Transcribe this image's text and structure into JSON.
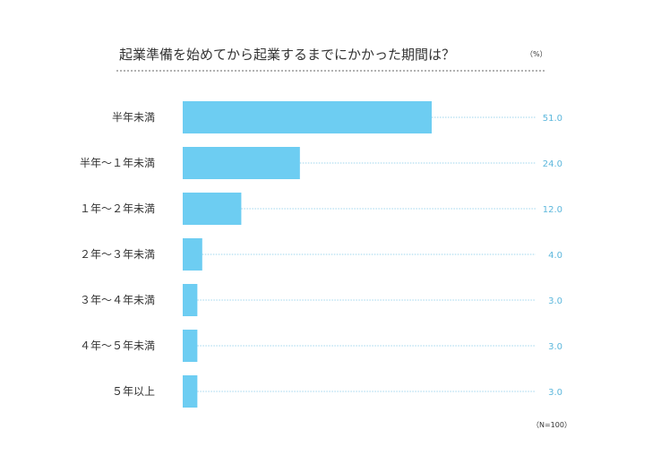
{
  "chart_data": {
    "type": "bar",
    "orientation": "horizontal",
    "title": "起業準備を始めてから起業するまでにかかった期間は？",
    "unit": "（%）",
    "note": "（N=100）",
    "categories": [
      "半年未満",
      "半年〜１年未満",
      "１年〜２年未満",
      "２年〜３年未満",
      "３年〜４年未満",
      "４年〜５年未満",
      "５年以上"
    ],
    "values": [
      51.0,
      24.0,
      12.0,
      4.0,
      3.0,
      3.0,
      3.0
    ],
    "value_labels": [
      "51.0",
      "24.0",
      "12.0",
      "4.0",
      "3.0",
      "3.0",
      "3.0"
    ],
    "xlim": [
      0,
      100
    ],
    "grid": false,
    "legend": "none",
    "colors": {
      "bar": "#6dcdf2",
      "leader_line": "#7fc8e8",
      "value_label": "#5cb7dc",
      "title_underline": "#666666"
    }
  }
}
